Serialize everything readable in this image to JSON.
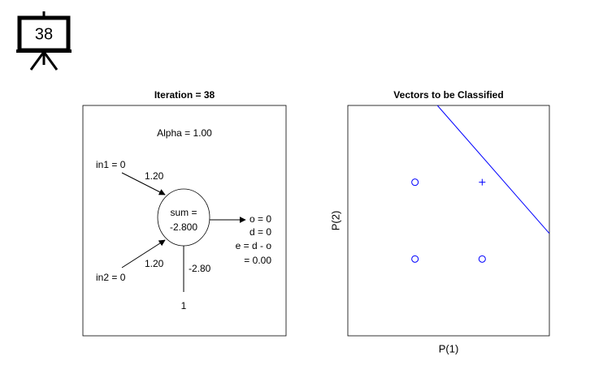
{
  "badge": {
    "label": "38"
  },
  "diagram": {
    "title": "Iteration = 38",
    "alpha": "Alpha = 1.00",
    "in1": "in1 = 0",
    "w1": "1.20",
    "in2": "in2 = 0",
    "w2": "1.20",
    "sum_label": "sum =",
    "sum_value": "-2.800",
    "bias_weight": "-2.80",
    "bias_input": "1",
    "output": "o = 0",
    "desired": "d = 0",
    "error_formula": "e = d - o",
    "error_value": "= 0.00"
  },
  "chart_data": {
    "type": "scatter",
    "title": "Vectors to be Classified",
    "xlabel": "P(1)",
    "ylabel": "P(2)",
    "xlim": [
      -1,
      2
    ],
    "ylim": [
      -1,
      2
    ],
    "series": [
      {
        "marker": "o",
        "color": "#0000ff",
        "x": [
          0,
          0,
          1
        ],
        "values": [
          0,
          1,
          0
        ]
      },
      {
        "marker": "+",
        "color": "#0000ff",
        "x": [
          1
        ],
        "values": [
          1
        ]
      }
    ],
    "lines": [
      {
        "color": "#0000ff",
        "x": [
          0.333,
          2
        ],
        "values": [
          2,
          0.333
        ]
      }
    ]
  }
}
